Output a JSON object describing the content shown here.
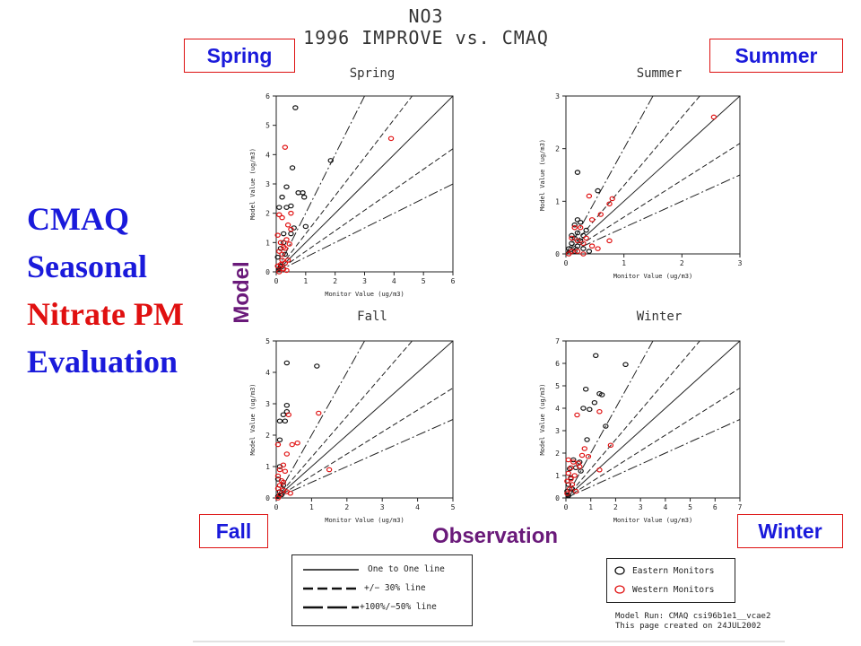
{
  "figure": {
    "title_line1": "NO3",
    "title_line2": "1996 IMPROVE vs. CMAQ"
  },
  "season_labels": {
    "spring": "Spring",
    "summer": "Summer",
    "fall": "Fall",
    "winter": "Winter"
  },
  "big_title": {
    "line1": "CMAQ",
    "line2": "Seasonal",
    "line3": "Nitrate PM",
    "line4": "Evaluation"
  },
  "axis_overlays": {
    "model": "Model",
    "observation": "Observation"
  },
  "legend": {
    "one_to_one": "One to One line",
    "pm30": "+/− 30% line",
    "pm50": "+100%/−50% line",
    "eastern": "Eastern Monitors",
    "western": "Western Monitors"
  },
  "footer": {
    "line1": "Model Run: CMAQ csi96b1e1__vcae2",
    "line2": "This page created on 24JUL2002"
  },
  "colors": {
    "eastern": "#111111",
    "western": "#e01010",
    "season_text": "#1a1adb",
    "season_border": "#d11111",
    "axis_overlay": "#6a1a7a"
  },
  "chart_data": [
    {
      "type": "scatter",
      "title": "Spring",
      "xlabel": "Monitor Value (ug/m3)",
      "ylabel": "Model Value (ug/m3)",
      "xlim": [
        0,
        6
      ],
      "ylim": [
        0,
        6
      ],
      "ticks": [
        0,
        1,
        2,
        3,
        4,
        5,
        6
      ],
      "series": [
        {
          "name": "Eastern Monitors",
          "points": [
            [
              0.65,
              5.6
            ],
            [
              0.55,
              3.55
            ],
            [
              0.35,
              2.9
            ],
            [
              0.1,
              2.2
            ],
            [
              0.2,
              2.55
            ],
            [
              0.35,
              2.2
            ],
            [
              0.5,
              2.25
            ],
            [
              0.75,
              2.7
            ],
            [
              0.9,
              2.7
            ],
            [
              0.95,
              2.55
            ],
            [
              1.0,
              1.55
            ],
            [
              0.6,
              1.5
            ],
            [
              0.5,
              1.3
            ],
            [
              0.25,
              1.0
            ],
            [
              0.15,
              0.8
            ],
            [
              0.05,
              0.5
            ],
            [
              0.3,
              0.6
            ],
            [
              0.15,
              0.2
            ],
            [
              0.1,
              0.1
            ],
            [
              0.25,
              1.3
            ],
            [
              1.85,
              3.8
            ]
          ]
        },
        {
          "name": "Western Monitors",
          "points": [
            [
              0.3,
              4.25
            ],
            [
              3.9,
              4.55
            ],
            [
              0.1,
              1.95
            ],
            [
              0.2,
              1.85
            ],
            [
              0.4,
              1.6
            ],
            [
              0.5,
              1.45
            ],
            [
              0.05,
              1.25
            ],
            [
              0.35,
              1.1
            ],
            [
              0.15,
              1.0
            ],
            [
              0.45,
              0.95
            ],
            [
              0.25,
              0.85
            ],
            [
              0.1,
              0.7
            ],
            [
              0.2,
              0.6
            ],
            [
              0.4,
              0.4
            ],
            [
              0.3,
              0.3
            ],
            [
              0.15,
              0.25
            ],
            [
              0.05,
              0.2
            ],
            [
              0.25,
              0.1
            ],
            [
              0.35,
              0.05
            ],
            [
              0.1,
              0.0
            ],
            [
              0.5,
              2.0
            ],
            [
              0.2,
              0.4
            ],
            [
              0.3,
              0.8
            ]
          ]
        }
      ]
    },
    {
      "type": "scatter",
      "title": "Summer",
      "xlabel": "Monitor Value (ug/m3)",
      "ylabel": "Model Value (ug/m3)",
      "xlim": [
        0,
        3
      ],
      "ylim": [
        0,
        3
      ],
      "ticks": [
        0,
        1,
        2,
        3
      ],
      "series": [
        {
          "name": "Eastern Monitors",
          "points": [
            [
              0.2,
              1.55
            ],
            [
              0.55,
              1.2
            ],
            [
              0.2,
              0.65
            ],
            [
              0.25,
              0.6
            ],
            [
              0.15,
              0.55
            ],
            [
              0.1,
              0.35
            ],
            [
              0.2,
              0.4
            ],
            [
              0.3,
              0.35
            ],
            [
              0.15,
              0.3
            ],
            [
              0.1,
              0.2
            ],
            [
              0.05,
              0.1
            ],
            [
              0.2,
              0.15
            ],
            [
              0.3,
              0.1
            ],
            [
              0.35,
              0.45
            ],
            [
              0.25,
              0.25
            ],
            [
              0.4,
              0.05
            ],
            [
              0.15,
              0.05
            ]
          ]
        },
        {
          "name": "Western Monitors",
          "points": [
            [
              2.55,
              2.6
            ],
            [
              0.4,
              1.1
            ],
            [
              0.8,
              1.05
            ],
            [
              0.75,
              0.95
            ],
            [
              0.6,
              0.75
            ],
            [
              0.45,
              0.65
            ],
            [
              0.25,
              0.5
            ],
            [
              0.15,
              0.5
            ],
            [
              0.1,
              0.3
            ],
            [
              0.2,
              0.25
            ],
            [
              0.3,
              0.2
            ],
            [
              0.45,
              0.15
            ],
            [
              0.75,
              0.25
            ],
            [
              0.35,
              0.3
            ],
            [
              0.55,
              0.1
            ],
            [
              0.1,
              0.05
            ],
            [
              0.2,
              0.05
            ],
            [
              0.3,
              0.0
            ],
            [
              0.05,
              0.0
            ]
          ]
        }
      ]
    },
    {
      "type": "scatter",
      "title": "Fall",
      "xlabel": "Monitor Value (ug/m3)",
      "ylabel": "Model Value (ug/m3)",
      "xlim": [
        0,
        5
      ],
      "ylim": [
        0,
        5
      ],
      "ticks": [
        0,
        1,
        2,
        3,
        4,
        5
      ],
      "series": [
        {
          "name": "Eastern Monitors",
          "points": [
            [
              0.3,
              4.3
            ],
            [
              1.15,
              4.2
            ],
            [
              0.3,
              2.95
            ],
            [
              0.3,
              2.75
            ],
            [
              0.2,
              2.65
            ],
            [
              0.1,
              2.45
            ],
            [
              0.25,
              2.45
            ],
            [
              0.1,
              1.85
            ],
            [
              0.1,
              1.0
            ],
            [
              0.05,
              0.6
            ],
            [
              0.2,
              0.4
            ],
            [
              0.1,
              0.2
            ],
            [
              0.15,
              0.1
            ],
            [
              0.05,
              0.05
            ]
          ]
        },
        {
          "name": "Western Monitors",
          "points": [
            [
              0.35,
              2.65
            ],
            [
              1.2,
              2.7
            ],
            [
              0.05,
              1.7
            ],
            [
              0.45,
              1.7
            ],
            [
              0.6,
              1.75
            ],
            [
              0.3,
              1.4
            ],
            [
              0.2,
              1.05
            ],
            [
              0.1,
              0.9
            ],
            [
              0.25,
              0.85
            ],
            [
              0.05,
              0.7
            ],
            [
              0.2,
              0.5
            ],
            [
              0.1,
              0.4
            ],
            [
              0.05,
              0.3
            ],
            [
              0.2,
              0.25
            ],
            [
              0.3,
              0.2
            ],
            [
              0.4,
              0.15
            ],
            [
              0.1,
              0.1
            ],
            [
              1.5,
              0.9
            ],
            [
              0.15,
              0.55
            ],
            [
              0.05,
              0.0
            ]
          ]
        }
      ]
    },
    {
      "type": "scatter",
      "title": "Winter",
      "xlabel": "Monitor Value (ug/m3)",
      "ylabel": "Model Value (ug/m3)",
      "xlim": [
        0,
        7
      ],
      "ylim": [
        0,
        7
      ],
      "ticks": [
        0,
        1,
        2,
        3,
        4,
        5,
        6,
        7
      ],
      "series": [
        {
          "name": "Eastern Monitors",
          "points": [
            [
              1.2,
              6.35
            ],
            [
              2.4,
              5.95
            ],
            [
              0.8,
              4.85
            ],
            [
              1.35,
              4.65
            ],
            [
              1.45,
              4.6
            ],
            [
              0.7,
              4.0
            ],
            [
              0.95,
              3.95
            ],
            [
              1.15,
              4.25
            ],
            [
              1.6,
              3.2
            ],
            [
              0.85,
              2.6
            ],
            [
              0.55,
              1.6
            ],
            [
              0.3,
              1.7
            ],
            [
              0.15,
              1.3
            ],
            [
              0.4,
              1.35
            ],
            [
              0.6,
              1.2
            ],
            [
              0.2,
              0.9
            ],
            [
              0.1,
              0.6
            ],
            [
              0.25,
              0.4
            ],
            [
              0.1,
              0.1
            ],
            [
              0.05,
              0.3
            ]
          ]
        },
        {
          "name": "Western Monitors",
          "points": [
            [
              0.45,
              3.7
            ],
            [
              1.35,
              3.85
            ],
            [
              0.75,
              2.2
            ],
            [
              0.65,
              1.9
            ],
            [
              0.9,
              1.85
            ],
            [
              0.1,
              1.7
            ],
            [
              0.3,
              1.6
            ],
            [
              0.5,
              1.55
            ],
            [
              0.2,
              1.35
            ],
            [
              0.55,
              1.4
            ],
            [
              0.1,
              1.1
            ],
            [
              0.35,
              1.0
            ],
            [
              0.2,
              0.85
            ],
            [
              0.05,
              0.75
            ],
            [
              0.25,
              0.6
            ],
            [
              0.15,
              0.4
            ],
            [
              0.05,
              0.2
            ],
            [
              1.8,
              2.35
            ],
            [
              1.35,
              1.25
            ],
            [
              0.4,
              0.3
            ]
          ]
        }
      ]
    }
  ]
}
